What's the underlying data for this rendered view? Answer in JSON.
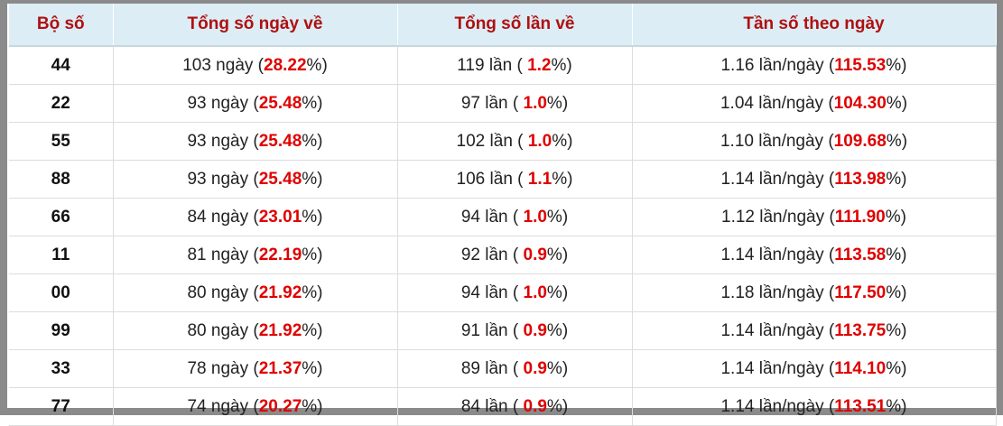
{
  "table": {
    "header": [
      "Bộ số",
      "Tổng số ngày về",
      "Tổng số lần về",
      "Tần số theo ngày"
    ],
    "rows": [
      {
        "bo": "44",
        "ngay": [
          "103 ngày (",
          "28.22",
          "%)"
        ],
        "lan": [
          "119 lần ( ",
          "1.2",
          "%)"
        ],
        "tanso": [
          "1.16 lần/ngày (",
          "115.53",
          "%)"
        ]
      },
      {
        "bo": "22",
        "ngay": [
          "93 ngày (",
          "25.48",
          "%)"
        ],
        "lan": [
          "97 lần ( ",
          "1.0",
          "%)"
        ],
        "tanso": [
          "1.04 lần/ngày (",
          "104.30",
          "%)"
        ]
      },
      {
        "bo": "55",
        "ngay": [
          "93 ngày (",
          "25.48",
          "%)"
        ],
        "lan": [
          "102 lần ( ",
          "1.0",
          "%)"
        ],
        "tanso": [
          "1.10 lần/ngày (",
          "109.68",
          "%)"
        ]
      },
      {
        "bo": "88",
        "ngay": [
          "93 ngày (",
          "25.48",
          "%)"
        ],
        "lan": [
          "106 lần ( ",
          "1.1",
          "%)"
        ],
        "tanso": [
          "1.14 lần/ngày (",
          "113.98",
          "%)"
        ]
      },
      {
        "bo": "66",
        "ngay": [
          "84 ngày (",
          "23.01",
          "%)"
        ],
        "lan": [
          "94 lần ( ",
          "1.0",
          "%)"
        ],
        "tanso": [
          "1.12 lần/ngày (",
          "111.90",
          "%)"
        ]
      },
      {
        "bo": "11",
        "ngay": [
          "81 ngày (",
          "22.19",
          "%)"
        ],
        "lan": [
          "92 lần ( ",
          "0.9",
          "%)"
        ],
        "tanso": [
          "1.14 lần/ngày (",
          "113.58",
          "%)"
        ]
      },
      {
        "bo": "00",
        "ngay": [
          "80 ngày (",
          "21.92",
          "%)"
        ],
        "lan": [
          "94 lần ( ",
          "1.0",
          "%)"
        ],
        "tanso": [
          "1.18 lần/ngày (",
          "117.50",
          "%)"
        ]
      },
      {
        "bo": "99",
        "ngay": [
          "80 ngày (",
          "21.92",
          "%)"
        ],
        "lan": [
          "91 lần ( ",
          "0.9",
          "%)"
        ],
        "tanso": [
          "1.14 lần/ngày (",
          "113.75",
          "%)"
        ]
      },
      {
        "bo": "33",
        "ngay": [
          "78 ngày (",
          "21.37",
          "%)"
        ],
        "lan": [
          "89 lần ( ",
          "0.9",
          "%)"
        ],
        "tanso": [
          "1.14 lần/ngày (",
          "114.10",
          "%)"
        ]
      },
      {
        "bo": "77",
        "ngay": [
          "74 ngày (",
          "20.27",
          "%)"
        ],
        "lan": [
          "84 lần ( ",
          "0.9",
          "%)"
        ],
        "tanso": [
          "1.14 lần/ngày (",
          "113.51",
          "%)"
        ]
      }
    ]
  }
}
